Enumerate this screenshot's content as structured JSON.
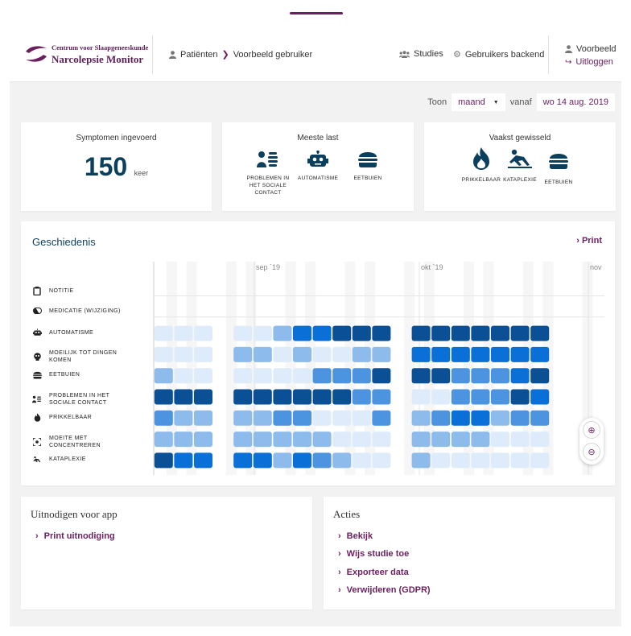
{
  "header": {
    "logo_line1": "Centrum voor Slaapgeneeskunde",
    "logo_line2": "Narcolepsie Monitor",
    "breadcrumb": [
      "Patiënten",
      "Voorbeeld gebruiker"
    ],
    "nav": [
      "Studies",
      "Gebruikers backend"
    ],
    "user": "Voorbeeld",
    "logout": "Uitloggen"
  },
  "toolbar": {
    "show_label": "Toon",
    "period_value": "maand",
    "from_label": "vanaf",
    "date_value": "wo 14 aug. 2019"
  },
  "cards": {
    "symptoms": {
      "title": "Symptomen ingevoerd",
      "count": "150",
      "unit": "keer"
    },
    "most": {
      "title": "Meeste last",
      "items": [
        {
          "label": "PROBLEMEN IN HET SOCIALE CONTACT",
          "icon": "people-icon"
        },
        {
          "label": "AUTOMATISME",
          "icon": "robot-icon"
        },
        {
          "label": "EETBUIEN",
          "icon": "burger-icon"
        }
      ]
    },
    "switched": {
      "title": "Vaakst gewisseld",
      "items": [
        {
          "label": "PRIKKELBAAR",
          "icon": "fire-icon"
        },
        {
          "label": "KATAPLEXIE",
          "icon": "falling-person-icon"
        },
        {
          "label": "EETBUIEN",
          "icon": "burger-icon"
        }
      ]
    }
  },
  "history": {
    "title": "Geschiedenis",
    "print": "Print",
    "months": [
      "sep `19",
      "okt `19",
      "nov"
    ],
    "rows": [
      {
        "label": "NOTITIE",
        "icon": "clipboard-icon"
      },
      {
        "label": "MEDICATIE (WIJZIGING)",
        "icon": "pill-icon"
      },
      {
        "label": "AUTOMATISME",
        "icon": "robot-icon"
      },
      {
        "label": "MOEILIJK TOT DINGEN KOMEN",
        "icon": "brain-icon"
      },
      {
        "label": "EETBUIEN",
        "icon": "burger-icon"
      },
      {
        "label": "PROBLEMEN IN HET SOCIALE CONTACT",
        "icon": "people-icon"
      },
      {
        "label": "PRIKKELBAAR",
        "icon": "fire-icon"
      },
      {
        "label": "MOEITE MET CONCENTREREN",
        "icon": "focus-icon"
      },
      {
        "label": "KATAPLEXIE",
        "icon": "falling-person-icon"
      }
    ],
    "colors": [
      "#ffffff",
      "#deebfa",
      "#8dbbeb",
      "#4c94e0",
      "#0a6fd6",
      "#0b4f94"
    ],
    "levels": [
      [
        0,
        0,
        0,
        0,
        0,
        0,
        0,
        0,
        0,
        0,
        0,
        0,
        0,
        0,
        0,
        0,
        0,
        0,
        0,
        0,
        0,
        0
      ],
      [
        0,
        0,
        0,
        0,
        0,
        0,
        0,
        0,
        0,
        0,
        0,
        0,
        0,
        0,
        0,
        0,
        0,
        0,
        0,
        0,
        0,
        0
      ],
      [
        1,
        1,
        1,
        0,
        1,
        1,
        2,
        4,
        4,
        5,
        5,
        5,
        0,
        5,
        5,
        5,
        5,
        5,
        5,
        5,
        0,
        0
      ],
      [
        1,
        1,
        1,
        0,
        2,
        2,
        1,
        2,
        1,
        1,
        2,
        2,
        0,
        4,
        4,
        4,
        4,
        4,
        4,
        4,
        0,
        0
      ],
      [
        2,
        1,
        1,
        0,
        1,
        1,
        1,
        1,
        3,
        3,
        3,
        5,
        0,
        5,
        5,
        3,
        3,
        3,
        4,
        5,
        0,
        0
      ],
      [
        5,
        5,
        5,
        0,
        5,
        5,
        5,
        5,
        5,
        5,
        3,
        3,
        0,
        1,
        1,
        3,
        3,
        3,
        5,
        4,
        0,
        0
      ],
      [
        3,
        2,
        2,
        0,
        2,
        2,
        3,
        3,
        1,
        1,
        1,
        3,
        0,
        2,
        3,
        4,
        4,
        2,
        3,
        3,
        0,
        0
      ],
      [
        2,
        2,
        2,
        0,
        2,
        2,
        2,
        2,
        2,
        1,
        1,
        1,
        0,
        2,
        2,
        2,
        2,
        1,
        1,
        1,
        0,
        0
      ],
      [
        5,
        4,
        4,
        0,
        4,
        4,
        2,
        4,
        3,
        2,
        1,
        1,
        0,
        2,
        1,
        1,
        1,
        1,
        1,
        1,
        0,
        0
      ]
    ]
  },
  "invite": {
    "title": "Uitnodigen voor app",
    "links": [
      "Print uitnodiging"
    ]
  },
  "actions": {
    "title": "Acties",
    "links": [
      "Bekijk",
      "Wijs studie toe",
      "Exporteer data",
      "Verwijderen (GDPR)"
    ]
  }
}
